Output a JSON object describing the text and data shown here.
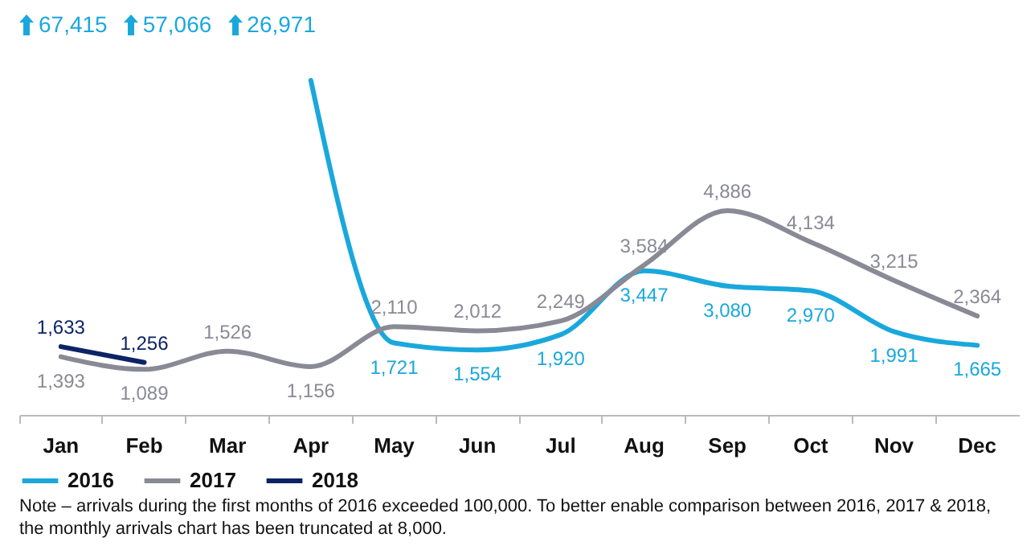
{
  "chart_data": {
    "type": "line",
    "categories": [
      "Jan",
      "Feb",
      "Mar",
      "Apr",
      "May",
      "Jun",
      "Jul",
      "Aug",
      "Sep",
      "Oct",
      "Nov",
      "Dec"
    ],
    "series": [
      {
        "name": "2016",
        "color": "#1aa8dc",
        "values": [
          null,
          null,
          null,
          8000,
          1721,
          1554,
          1920,
          3447,
          3080,
          2970,
          1991,
          1665
        ],
        "value_labels": [
          null,
          null,
          null,
          null,
          "1,721",
          "1,554",
          "1,920",
          "3,447",
          "3,080",
          "2,970",
          "1,991",
          "1,665"
        ]
      },
      {
        "name": "2017",
        "color": "#8a8a96",
        "values": [
          1393,
          1089,
          1526,
          1156,
          2110,
          2012,
          2249,
          3584,
          4886,
          4134,
          3215,
          2364
        ],
        "value_labels": [
          "1,393",
          "1,089",
          "1,526",
          "1,156",
          "2,110",
          "2,012",
          "2,249",
          "3,584",
          "4,886",
          "4,134",
          "3,215",
          "2,364"
        ]
      },
      {
        "name": "2018",
        "color": "#0c2366",
        "values": [
          1633,
          1256,
          null,
          null,
          null,
          null,
          null,
          null,
          null,
          null,
          null,
          null
        ],
        "value_labels": [
          "1,633",
          "1,256",
          null,
          null,
          null,
          null,
          null,
          null,
          null,
          null,
          null,
          null
        ]
      }
    ],
    "tick_labels": "x",
    "legend": "bottom left",
    "grid": false,
    "marker": "none",
    "line_style": "solid",
    "annotations": [
      "67,415",
      "57,066",
      "26,971",
      "Note – arrivals during the first months of 2016 exceeded 100,000. To better enable comparison between 2016, 2017 & 2018, the monthly arrivals chart has been truncated at 8,000."
    ]
  }
}
